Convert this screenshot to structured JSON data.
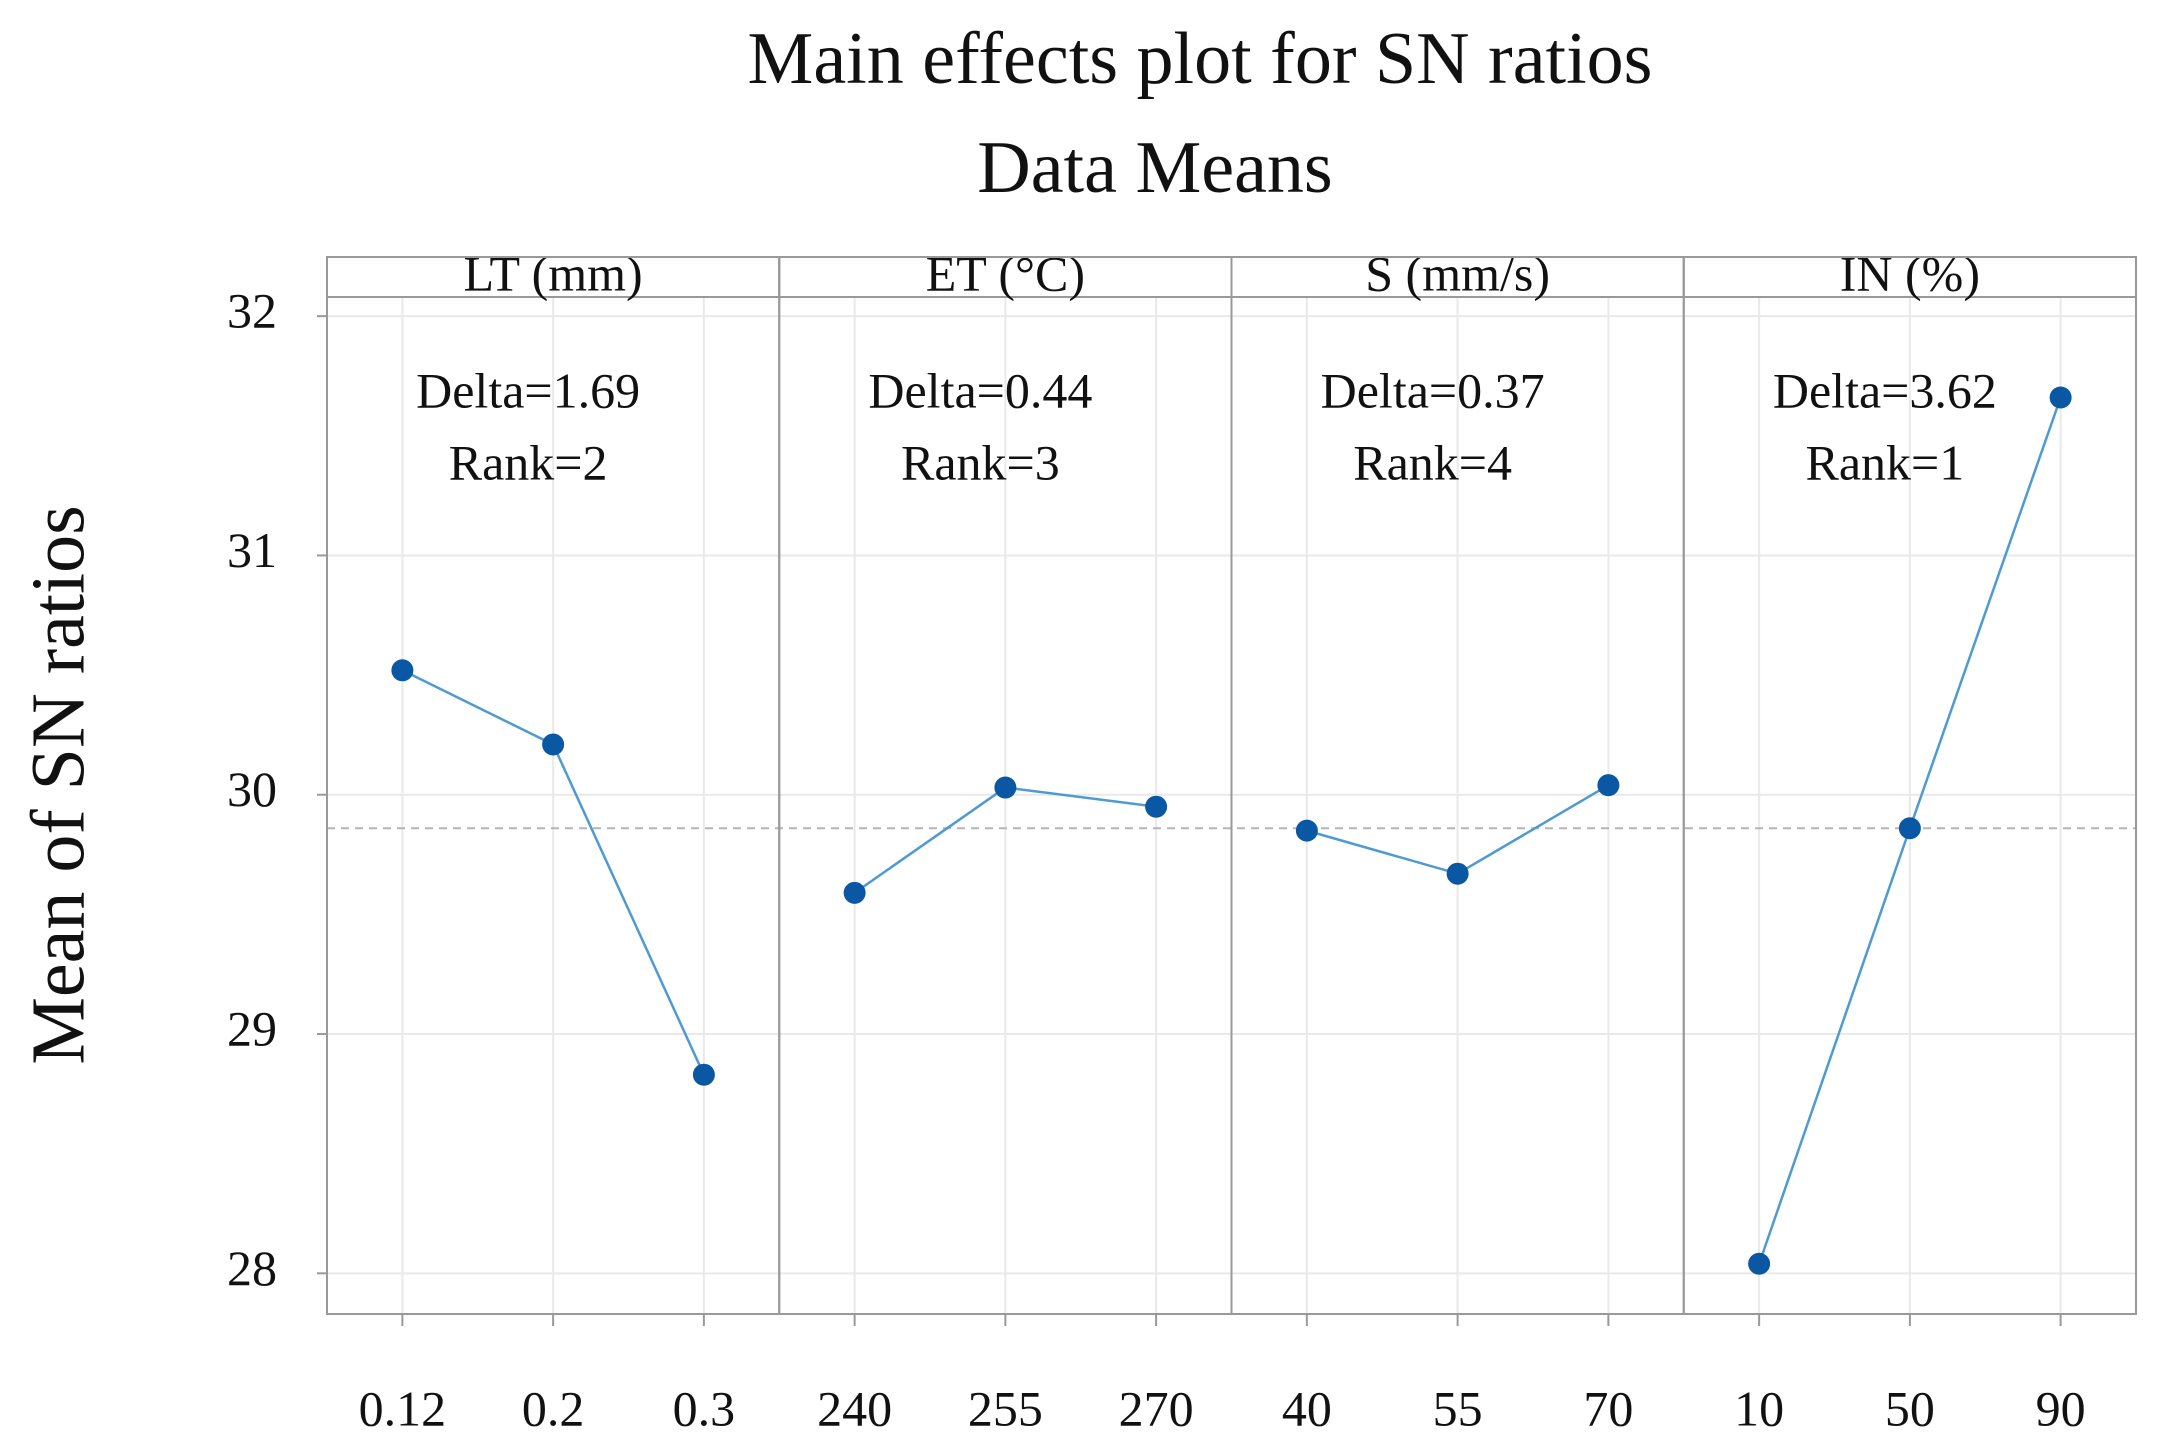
{
  "chart_data": {
    "type": "line",
    "title": "Main effects plot for SN ratios",
    "subtitle": "Data Means",
    "y_label": "Mean of SN ratios",
    "ylim": [
      27.83,
      32.08
    ],
    "yticks": [
      28,
      29,
      30,
      31,
      32
    ],
    "grid": true,
    "mean_line": 29.86,
    "line_color": "#4f9ad2",
    "marker_color": "#0a57a4",
    "panels": [
      {
        "name": "LT (mm)",
        "categories": [
          "0.12",
          "0.2",
          "0.3"
        ],
        "values": [
          30.52,
          30.21,
          28.83
        ],
        "annotations": [
          "Delta=1.69",
          "Rank=2"
        ]
      },
      {
        "name": "ET (°C)",
        "categories": [
          "240",
          "255",
          "270"
        ],
        "values": [
          29.59,
          30.03,
          29.95
        ],
        "annotations": [
          "Delta=0.44",
          "Rank=3"
        ]
      },
      {
        "name": "S (mm/s)",
        "categories": [
          "40",
          "55",
          "70"
        ],
        "values": [
          29.85,
          29.67,
          30.04
        ],
        "annotations": [
          "Delta=0.37",
          "Rank=4"
        ]
      },
      {
        "name": "IN (%)",
        "categories": [
          "10",
          "50",
          "90"
        ],
        "values": [
          28.04,
          29.86,
          31.66
        ],
        "annotations": [
          "Delta=3.62",
          "Rank=1"
        ]
      }
    ]
  }
}
